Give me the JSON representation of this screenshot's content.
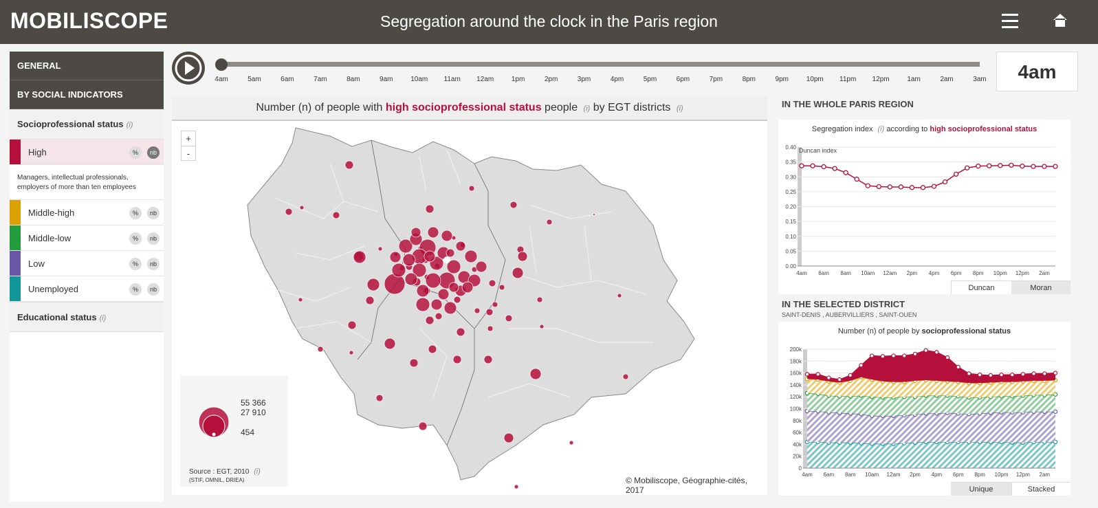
{
  "header": {
    "brand": "MOBILISCOPE",
    "title": "Segregation around the clock in the Paris region"
  },
  "nav": {
    "general": "GENERAL",
    "by_social": "BY SOCIAL INDICATORS"
  },
  "indicator": {
    "name": "Socioprofessional status",
    "info": "(i)",
    "categories": [
      {
        "label": "High",
        "color": "#b5103c",
        "pct": "%",
        "nb": "nb",
        "active": true
      },
      {
        "label": "Middle-high",
        "color": "#dba100",
        "pct": "%",
        "nb": "nb"
      },
      {
        "label": "Middle-low",
        "color": "#239c3d",
        "pct": "%",
        "nb": "nb"
      },
      {
        "label": "Low",
        "color": "#6b55a5",
        "pct": "%",
        "nb": "nb"
      },
      {
        "label": "Unemployed",
        "color": "#12969a",
        "pct": "%",
        "nb": "nb"
      }
    ],
    "description": "Managers, intellectual professionals, employers of more than ten employees"
  },
  "educational": {
    "name": "Educational status",
    "info": "(i)"
  },
  "timeline": {
    "hours": [
      "4am",
      "5am",
      "6am",
      "7am",
      "8am",
      "9am",
      "10am",
      "11am",
      "12am",
      "1pm",
      "2pm",
      "3pm",
      "4pm",
      "5pm",
      "6pm",
      "7pm",
      "8pm",
      "9pm",
      "10pm",
      "11pm",
      "12pm",
      "1am",
      "2am",
      "3am"
    ],
    "current_index": 0,
    "current_label": "4am"
  },
  "map": {
    "title_prefix": "Number (n) of people with",
    "title_accent": "high socioprofessional status",
    "title_mid": "people",
    "title_info": "(i)",
    "title_suffix": "by EGT districts",
    "title_info2": "(i)",
    "zoom_in": "+",
    "zoom_out": "-",
    "legend_values": [
      "55 366",
      "27 910",
      "454"
    ],
    "source": "Source : EGT, 2010",
    "source_info": "(i)",
    "source_sub": "(STIF, OMNIL, DRIEA)",
    "credit": "© Mobiliscope, Géographie-cités, 2017",
    "bubble_color": "#b5103c"
  },
  "region_panel": {
    "heading": "IN THE WHOLE PARIS REGION",
    "subtitle_prefix": "Segregation index",
    "subtitle_info": "(i)",
    "subtitle_mid": "according to",
    "subtitle_accent": "high socioprofessional status",
    "index_label": "Duncan index",
    "tabs": [
      "Duncan",
      "Moran"
    ]
  },
  "district_panel": {
    "heading": "IN THE SELECTED DISTRICT",
    "district": "SAINT-DENIS , AUBERVILLIERS , SAINT-OUEN",
    "subtitle_prefix": "Number (n) of people by",
    "subtitle_bold": "socioprofessional status",
    "tabs": [
      "Unique",
      "Stacked"
    ]
  },
  "chart_data": [
    {
      "type": "line",
      "x": [
        "4am",
        "5am",
        "6am",
        "7am",
        "8am",
        "9am",
        "10am",
        "11am",
        "12am",
        "1pm",
        "2pm",
        "3pm",
        "4pm",
        "5pm",
        "6pm",
        "7pm",
        "8pm",
        "9pm",
        "10pm",
        "11pm",
        "12pm",
        "1am",
        "2am",
        "3am"
      ],
      "xticks": [
        "4am",
        "6am",
        "8am",
        "10am",
        "12am",
        "2pm",
        "4pm",
        "6pm",
        "8pm",
        "10pm",
        "12pm",
        "2am"
      ],
      "series": [
        {
          "values": [
            0.337,
            0.337,
            0.334,
            0.328,
            0.314,
            0.292,
            0.27,
            0.267,
            0.266,
            0.266,
            0.264,
            0.264,
            0.268,
            0.283,
            0.309,
            0.33,
            0.336,
            0.337,
            0.338,
            0.339,
            0.336,
            0.335,
            0.335,
            0.335
          ],
          "color": "#b5103c"
        }
      ],
      "ylim": [
        0,
        0.4
      ],
      "yticks": [
        "0.00",
        "0.05",
        "0.10",
        "0.15",
        "0.20",
        "0.25",
        "0.30",
        "0.35",
        "0.40"
      ],
      "ylabel": "Duncan index",
      "grid": true
    },
    {
      "type": "area",
      "x": [
        "4am",
        "5am",
        "6am",
        "7am",
        "8am",
        "9am",
        "10am",
        "11am",
        "12am",
        "1pm",
        "2pm",
        "3pm",
        "4pm",
        "5pm",
        "6pm",
        "7pm",
        "8pm",
        "9pm",
        "10pm",
        "11pm",
        "12pm",
        "1am",
        "2am",
        "3am"
      ],
      "xticks": [
        "4am",
        "6am",
        "8am",
        "10am",
        "12am",
        "2pm",
        "4pm",
        "6pm",
        "8pm",
        "10pm",
        "12pm",
        "2am"
      ],
      "stacked": true,
      "series": [
        {
          "color": "#12969a",
          "values": [
            44,
            44,
            43,
            43,
            43,
            42,
            41,
            41,
            41,
            42,
            43,
            44,
            44,
            44,
            44,
            44,
            44,
            44,
            44,
            43,
            43,
            44,
            44,
            44
          ]
        },
        {
          "color": "#6b55a5",
          "values": [
            52,
            52,
            51,
            50,
            49,
            49,
            47,
            47,
            47,
            47,
            47,
            48,
            48,
            49,
            48,
            47,
            48,
            49,
            50,
            51,
            51,
            51,
            51,
            51
          ]
        },
        {
          "color": "#239c3d",
          "values": [
            30,
            29,
            28,
            28,
            29,
            31,
            32,
            31,
            31,
            31,
            30,
            30,
            30,
            29,
            29,
            28,
            27,
            27,
            27,
            27,
            28,
            28,
            28,
            29
          ]
        },
        {
          "color": "#dba100",
          "values": [
            24,
            24,
            24,
            23,
            26,
            31,
            29,
            27,
            26,
            25,
            27,
            26,
            25,
            24,
            24,
            24,
            24,
            24,
            24,
            24,
            24,
            24,
            24,
            24
          ]
        },
        {
          "color": "#b5103c",
          "values": [
            8,
            9,
            6,
            5,
            9,
            20,
            40,
            42,
            44,
            44,
            45,
            50,
            48,
            40,
            25,
            16,
            14,
            12,
            12,
            12,
            12,
            12,
            12,
            12
          ]
        }
      ],
      "ylim": [
        0,
        200
      ],
      "yticks": [
        "0",
        "20k",
        "40k",
        "60k",
        "80k",
        "100k",
        "120k",
        "140k",
        "160k",
        "180k",
        "200k"
      ],
      "grid": true
    }
  ]
}
